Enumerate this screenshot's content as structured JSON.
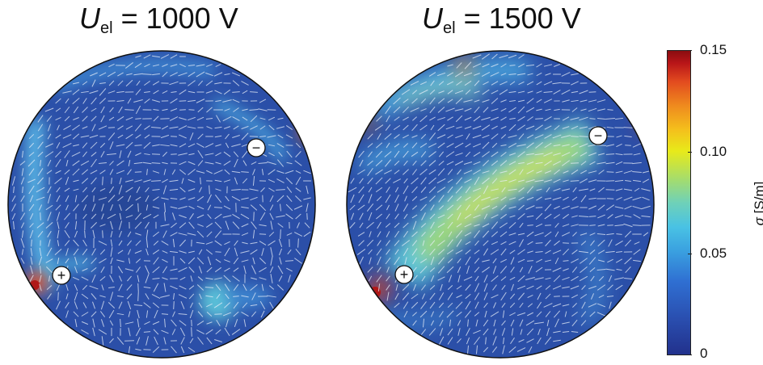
{
  "titles": {
    "left": {
      "symbol": "U",
      "subscript": "el",
      "value": " = 1000 V"
    },
    "right": {
      "symbol": "U",
      "subscript": "el",
      "value": " = 1500 V"
    }
  },
  "electrodes": {
    "positive": "+",
    "negative": "−"
  },
  "colorbar": {
    "label_symbol": "σ",
    "label_unit": " [S/m]",
    "ticks": [
      "0.15",
      "0.10",
      "0.05",
      "0"
    ],
    "tick_values": [
      0.15,
      0.1,
      0.05,
      0
    ],
    "range": [
      0,
      0.15
    ],
    "colors": [
      "#22318c",
      "#3aa0e0",
      "#e8ea1a",
      "#8a0d10"
    ]
  }
}
